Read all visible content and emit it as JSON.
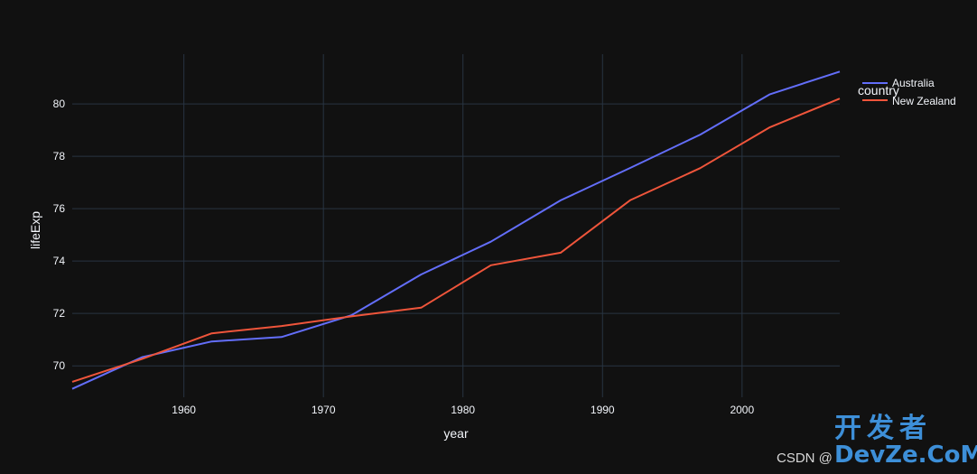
{
  "chart_data": {
    "type": "line",
    "xlabel": "year",
    "ylabel": "lifeExp",
    "xlim": [
      1952,
      2007
    ],
    "ylim": [
      68.8,
      81.9
    ],
    "x_ticks": [
      1960,
      1970,
      1980,
      1990,
      2000
    ],
    "y_ticks": [
      70,
      72,
      74,
      76,
      78,
      80
    ],
    "grid": true,
    "legend": {
      "title": "country",
      "placement": "top-right"
    },
    "colors": {
      "background": "#111111",
      "grid": "#283442",
      "text": "#f2f5fa"
    },
    "series": [
      {
        "name": "Australia",
        "color": "#636efa",
        "x": [
          1952,
          1957,
          1962,
          1967,
          1972,
          1977,
          1982,
          1987,
          1992,
          1997,
          2002,
          2007
        ],
        "y": [
          69.12,
          70.33,
          70.93,
          71.1,
          71.93,
          73.49,
          74.74,
          76.32,
          77.56,
          78.83,
          80.37,
          81.235
        ]
      },
      {
        "name": "New Zealand",
        "color": "#ef553b",
        "x": [
          1952,
          1957,
          1962,
          1967,
          1972,
          1977,
          1982,
          1987,
          1992,
          1997,
          2002,
          2007
        ],
        "y": [
          69.39,
          70.26,
          71.24,
          71.52,
          71.89,
          72.22,
          73.84,
          74.32,
          76.33,
          77.55,
          79.11,
          80.204
        ]
      }
    ]
  },
  "watermark": {
    "site_cn": "开发者",
    "site_en": "DevZe.CoM",
    "csdn": "CSDN @"
  }
}
